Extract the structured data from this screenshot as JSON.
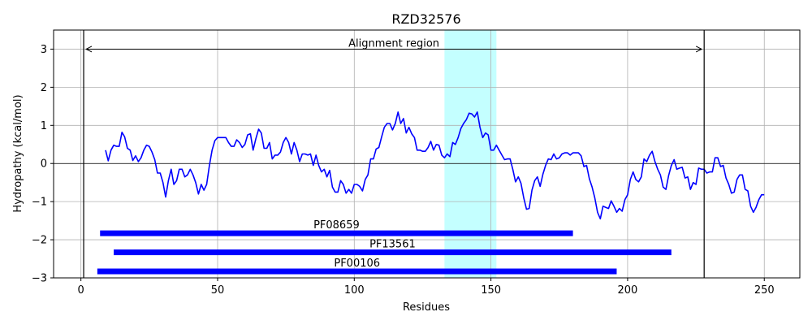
{
  "chart_data": {
    "type": "line",
    "title": "RZD32576",
    "xlabel": "Residues",
    "ylabel": "Hydropathy (kcal/mol)",
    "xlim": [
      -10,
      263
    ],
    "ylim": [
      -3,
      3.5
    ],
    "xticks": [
      0,
      50,
      100,
      150,
      200,
      250
    ],
    "yticks": [
      -3,
      -2,
      -1,
      0,
      1,
      2,
      3
    ],
    "grid": true,
    "colors": {
      "line": "#0000ff",
      "domain_bar": "#0000ff",
      "highlight": "#c4ffff",
      "zero_line": "#000000"
    },
    "series": [
      {
        "x": [
          9,
          10,
          11,
          12,
          13,
          14,
          15,
          16,
          17,
          18,
          19,
          20,
          21,
          22,
          23,
          24,
          25,
          26,
          27,
          28,
          29,
          30,
          31,
          32,
          33,
          34,
          35,
          36,
          37,
          38,
          39,
          40,
          41,
          42,
          43,
          44,
          45,
          46,
          47,
          48,
          49,
          50,
          51,
          52,
          53,
          54,
          55,
          56,
          57,
          58,
          59,
          60,
          61,
          62,
          63,
          64,
          65,
          66,
          67,
          68,
          69,
          70,
          71,
          72,
          73,
          74,
          75,
          76,
          77,
          78,
          79,
          80,
          81,
          82,
          83,
          84,
          85,
          86,
          87,
          88,
          89,
          90,
          91,
          92,
          93,
          94,
          95,
          96,
          97,
          98,
          99,
          100,
          101,
          102,
          103,
          104,
          105,
          106,
          107,
          108,
          109,
          110,
          111,
          112,
          113,
          114,
          115,
          116,
          117,
          118,
          119,
          120,
          121,
          122,
          123,
          124,
          125,
          126,
          127,
          128,
          129,
          130,
          131,
          132,
          133,
          134,
          135,
          136,
          137,
          138,
          139,
          140,
          141,
          142,
          143,
          144,
          145,
          146,
          147,
          148,
          149,
          150,
          151,
          152,
          153,
          154,
          155,
          156,
          157,
          158,
          159,
          160,
          161,
          162,
          163,
          164,
          165,
          166,
          167,
          168,
          169,
          170,
          171,
          172,
          173,
          174,
          175,
          176,
          177,
          178,
          179,
          180,
          181,
          182,
          183,
          184,
          185,
          186,
          187,
          188,
          189,
          190,
          191,
          192,
          193,
          194,
          195,
          196,
          197,
          198,
          199,
          200,
          201,
          202,
          203,
          204,
          205,
          206,
          207,
          208,
          209,
          210,
          211,
          212,
          213,
          214,
          215,
          216,
          217,
          218,
          219,
          220,
          221,
          222,
          223,
          224,
          225,
          226,
          227,
          228,
          229,
          230,
          231,
          232,
          233,
          234,
          235,
          236,
          237,
          238,
          239,
          240,
          241,
          242,
          243,
          244,
          245,
          246,
          247,
          248,
          249,
          250
        ],
        "values": [
          0.35,
          0.07,
          0.35,
          0.48,
          0.45,
          0.45,
          0.82,
          0.7,
          0.4,
          0.35,
          0.08,
          0.2,
          0.05,
          0.15,
          0.35,
          0.48,
          0.45,
          0.3,
          0.1,
          -0.25,
          -0.25,
          -0.5,
          -0.88,
          -0.45,
          -0.15,
          -0.55,
          -0.45,
          -0.15,
          -0.15,
          -0.35,
          -0.3,
          -0.15,
          -0.3,
          -0.5,
          -0.8,
          -0.55,
          -0.7,
          -0.55,
          -0.05,
          0.35,
          0.6,
          0.68,
          0.68,
          0.68,
          0.68,
          0.55,
          0.45,
          0.45,
          0.62,
          0.55,
          0.42,
          0.5,
          0.75,
          0.78,
          0.35,
          0.65,
          0.9,
          0.8,
          0.4,
          0.4,
          0.55,
          0.12,
          0.22,
          0.22,
          0.3,
          0.55,
          0.68,
          0.55,
          0.25,
          0.55,
          0.35,
          0.05,
          0.25,
          0.25,
          0.22,
          0.25,
          -0.05,
          0.22,
          -0.05,
          -0.22,
          -0.15,
          -0.35,
          -0.18,
          -0.62,
          -0.75,
          -0.75,
          -0.45,
          -0.55,
          -0.78,
          -0.68,
          -0.78,
          -0.55,
          -0.55,
          -0.6,
          -0.72,
          -0.42,
          -0.3,
          0.12,
          0.12,
          0.38,
          0.42,
          0.7,
          0.95,
          1.05,
          1.05,
          0.88,
          1.05,
          1.35,
          1.05,
          1.18,
          0.8,
          0.95,
          0.78,
          0.68,
          0.35,
          0.35,
          0.32,
          0.32,
          0.42,
          0.58,
          0.35,
          0.5,
          0.48,
          0.22,
          0.15,
          0.25,
          0.18,
          0.55,
          0.5,
          0.68,
          0.92,
          1.05,
          1.15,
          1.32,
          1.3,
          1.22,
          1.35,
          0.95,
          0.68,
          0.8,
          0.75,
          0.35,
          0.35,
          0.48,
          0.35,
          0.22,
          0.1,
          0.12,
          0.12,
          -0.15,
          -0.48,
          -0.35,
          -0.52,
          -0.9,
          -1.2,
          -1.18,
          -0.7,
          -0.45,
          -0.35,
          -0.6,
          -0.28,
          -0.05,
          0.12,
          0.1,
          0.25,
          0.12,
          0.15,
          0.25,
          0.28,
          0.28,
          0.22,
          0.28,
          0.28,
          0.28,
          0.2,
          -0.08,
          -0.05,
          -0.4,
          -0.62,
          -0.9,
          -1.28,
          -1.45,
          -1.12,
          -1.15,
          -1.18,
          -0.98,
          -1.12,
          -1.28,
          -1.18,
          -1.25,
          -0.95,
          -0.82,
          -0.42,
          -0.22,
          -0.42,
          -0.48,
          -0.35,
          0.12,
          0.05,
          0.22,
          0.32,
          0.05,
          -0.15,
          -0.3,
          -0.62,
          -0.68,
          -0.32,
          -0.05,
          0.1,
          -0.15,
          -0.12,
          -0.1,
          -0.38,
          -0.35,
          -0.68,
          -0.5,
          -0.55,
          -0.12,
          -0.15,
          -0.15,
          -0.25,
          -0.22,
          -0.22,
          0.15,
          0.15,
          -0.08,
          -0.05,
          -0.38,
          -0.55,
          -0.78,
          -0.75,
          -0.42,
          -0.3,
          -0.3,
          -0.68,
          -0.72,
          -1.12,
          -1.28,
          -1.15,
          -0.95,
          -0.82,
          -0.82
        ]
      }
    ],
    "domains": [
      {
        "name": "PF08659",
        "start": 7,
        "end": 180,
        "y": -1.83
      },
      {
        "name": "PF13561",
        "start": 12,
        "end": 216,
        "y": -2.33
      },
      {
        "name": "PF00106",
        "start": 6,
        "end": 196,
        "y": -2.83
      }
    ],
    "highlight_region": {
      "start": 133,
      "end": 152
    },
    "alignment_region": {
      "label": "Alignment region",
      "start": 1,
      "end": 228,
      "y": 3.0
    }
  }
}
